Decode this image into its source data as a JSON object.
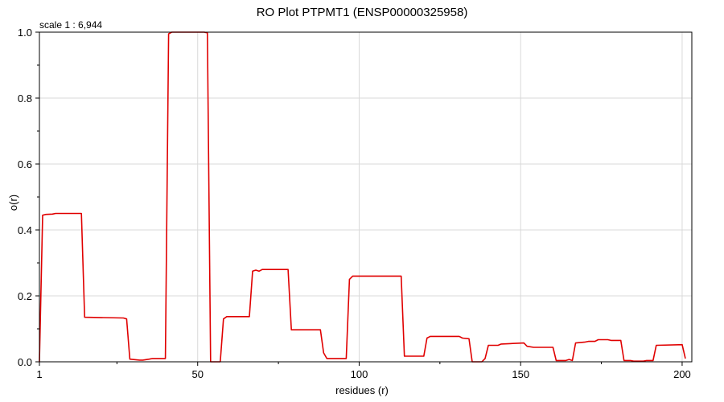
{
  "chart_data": {
    "type": "line",
    "title": "RO Plot PTPMT1 (ENSP00000325958)",
    "scale_text": "scale 1 : 6,944",
    "xlabel": "residues (r)",
    "ylabel": "o(r)",
    "xlim": [
      1,
      203
    ],
    "ylim": [
      0,
      1.0
    ],
    "x_ticks": [
      1,
      50,
      100,
      150,
      200
    ],
    "y_ticks": [
      0.0,
      0.2,
      0.4,
      0.6,
      0.8,
      1.0
    ],
    "y_tick_labels": [
      "0.0",
      "0.2",
      "0.4",
      "0.6",
      "0.8",
      "1.0"
    ],
    "grid": true,
    "line_color": "#e00000",
    "series": [
      {
        "x": [
          1,
          2,
          3,
          5,
          6,
          14,
          15,
          27,
          28,
          29,
          32,
          33,
          35,
          36,
          40,
          41,
          42,
          52,
          53,
          54,
          57,
          58,
          59,
          66,
          67,
          68,
          69,
          70,
          78,
          79,
          88,
          89,
          90,
          96,
          97,
          98,
          113,
          114,
          120,
          121,
          122,
          131,
          132,
          134,
          135,
          138,
          139,
          140,
          143,
          144,
          151,
          152,
          154,
          160,
          161,
          164,
          165,
          166,
          167,
          170,
          171,
          173,
          174,
          177,
          178,
          181,
          182,
          184,
          185,
          188,
          189,
          191,
          192,
          200,
          201
        ],
        "y": [
          0.0,
          0.445,
          0.447,
          0.448,
          0.45,
          0.45,
          0.135,
          0.133,
          0.13,
          0.008,
          0.005,
          0.005,
          0.008,
          0.01,
          0.01,
          0.995,
          1.0,
          1.0,
          0.998,
          0.0,
          0.0,
          0.13,
          0.137,
          0.137,
          0.275,
          0.278,
          0.275,
          0.28,
          0.28,
          0.097,
          0.097,
          0.027,
          0.01,
          0.01,
          0.25,
          0.26,
          0.26,
          0.017,
          0.017,
          0.072,
          0.077,
          0.077,
          0.072,
          0.07,
          0.0,
          0.0,
          0.01,
          0.05,
          0.05,
          0.054,
          0.057,
          0.047,
          0.044,
          0.044,
          0.004,
          0.004,
          0.007,
          0.004,
          0.057,
          0.06,
          0.062,
          0.062,
          0.067,
          0.067,
          0.065,
          0.065,
          0.004,
          0.004,
          0.002,
          0.002,
          0.004,
          0.004,
          0.05,
          0.052,
          0.01
        ]
      }
    ]
  }
}
